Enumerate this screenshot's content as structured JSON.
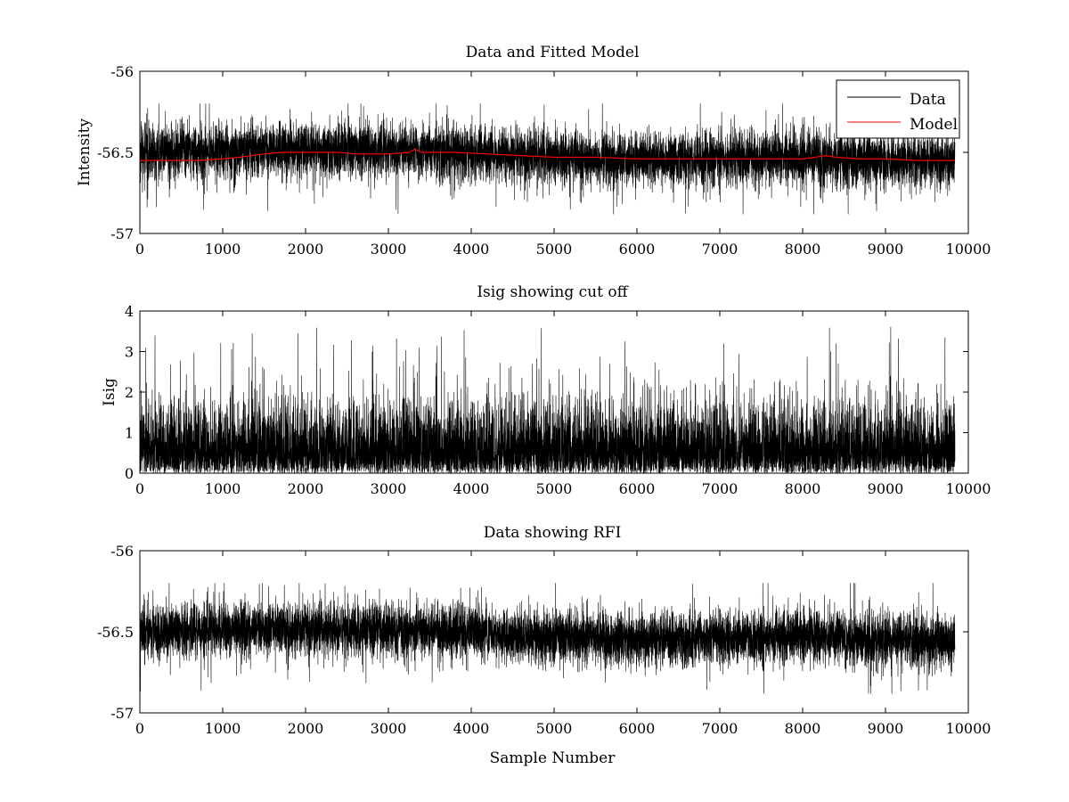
{
  "figure": {
    "xlabel": "Sample Number"
  },
  "chart_data": [
    {
      "type": "line",
      "title": "Data and Fitted Model",
      "xlabel": "",
      "ylabel": "Intensity",
      "xlim": [
        0,
        10000
      ],
      "ylim": [
        -57,
        -56
      ],
      "xticks": [
        "0",
        "1000",
        "2000",
        "3000",
        "4000",
        "5000",
        "6000",
        "7000",
        "8000",
        "9000",
        "10000"
      ],
      "yticks": [
        "-57",
        "-56.5",
        "-56"
      ],
      "ytick_values": [
        -57,
        -56.5,
        -56
      ],
      "legend": {
        "placement": "top-right",
        "entries": [
          {
            "label": "Data",
            "color": "#000000"
          },
          {
            "label": "Model",
            "color": "#ff0000"
          }
        ]
      },
      "series": [
        {
          "name": "Data",
          "color": "#000000",
          "kind": "noise",
          "n_points": 9840,
          "baseline": {
            "x": [
              0,
              1000,
              2000,
              3000,
              4000,
              5000,
              6000,
              7000,
              8000,
              9000,
              9840
            ],
            "y": [
              -56.5,
              -56.49,
              -56.48,
              -56.49,
              -56.5,
              -56.53,
              -56.55,
              -56.54,
              -56.53,
              -56.55,
              -56.56
            ]
          },
          "spread": 0.15,
          "max": -56.2,
          "min": -56.88
        },
        {
          "name": "Model",
          "color": "#ff0000",
          "kind": "line",
          "x": [
            0,
            300,
            700,
            1000,
            1200,
            1500,
            1700,
            2000,
            2400,
            2600,
            3000,
            3250,
            3320,
            3400,
            3800,
            4200,
            4600,
            5000,
            5500,
            6000,
            6500,
            7000,
            7500,
            8000,
            8150,
            8280,
            8400,
            8700,
            9000,
            9400,
            9840
          ],
          "y": [
            -56.55,
            -56.55,
            -56.55,
            -56.54,
            -56.53,
            -56.51,
            -56.5,
            -56.5,
            -56.5,
            -56.51,
            -56.51,
            -56.5,
            -56.48,
            -56.5,
            -56.5,
            -56.51,
            -56.52,
            -56.53,
            -56.53,
            -56.54,
            -56.54,
            -56.54,
            -56.54,
            -56.54,
            -56.53,
            -56.52,
            -56.53,
            -56.54,
            -56.54,
            -56.55,
            -56.55
          ]
        }
      ]
    },
    {
      "type": "line",
      "title": "Isig showing cut off",
      "xlabel": "",
      "ylabel": "Isig",
      "xlim": [
        0,
        10000
      ],
      "ylim": [
        0,
        4
      ],
      "xticks": [
        "0",
        "1000",
        "2000",
        "3000",
        "4000",
        "5000",
        "6000",
        "7000",
        "8000",
        "9000",
        "10000"
      ],
      "yticks": [
        "0",
        "1",
        "2",
        "3",
        "4"
      ],
      "ytick_values": [
        0,
        1,
        2,
        3,
        4
      ],
      "series": [
        {
          "color": "#000000",
          "kind": "abs-noise",
          "n_points": 9840,
          "scale": 0.95,
          "max": 3.75,
          "min": 0
        }
      ]
    },
    {
      "type": "line",
      "title": "Data showing RFI",
      "xlabel": "Sample Number",
      "ylabel": "",
      "xlim": [
        0,
        10000
      ],
      "ylim": [
        -57,
        -56
      ],
      "xticks": [
        "0",
        "1000",
        "2000",
        "3000",
        "4000",
        "5000",
        "6000",
        "7000",
        "8000",
        "9000",
        "10000"
      ],
      "yticks": [
        "-57",
        "-56.5",
        "-56"
      ],
      "ytick_values": [
        -57,
        -56.5,
        -56
      ],
      "series": [
        {
          "color": "#000000",
          "kind": "noise",
          "n_points": 9840,
          "baseline": {
            "x": [
              0,
              1000,
              2000,
              3000,
              4000,
              5000,
              6000,
              7000,
              8000,
              9000,
              9840
            ],
            "y": [
              -56.5,
              -56.49,
              -56.48,
              -56.49,
              -56.5,
              -56.53,
              -56.55,
              -56.54,
              -56.53,
              -56.55,
              -56.56
            ]
          },
          "spread": 0.15,
          "max": -56.2,
          "min": -56.88
        }
      ]
    }
  ]
}
